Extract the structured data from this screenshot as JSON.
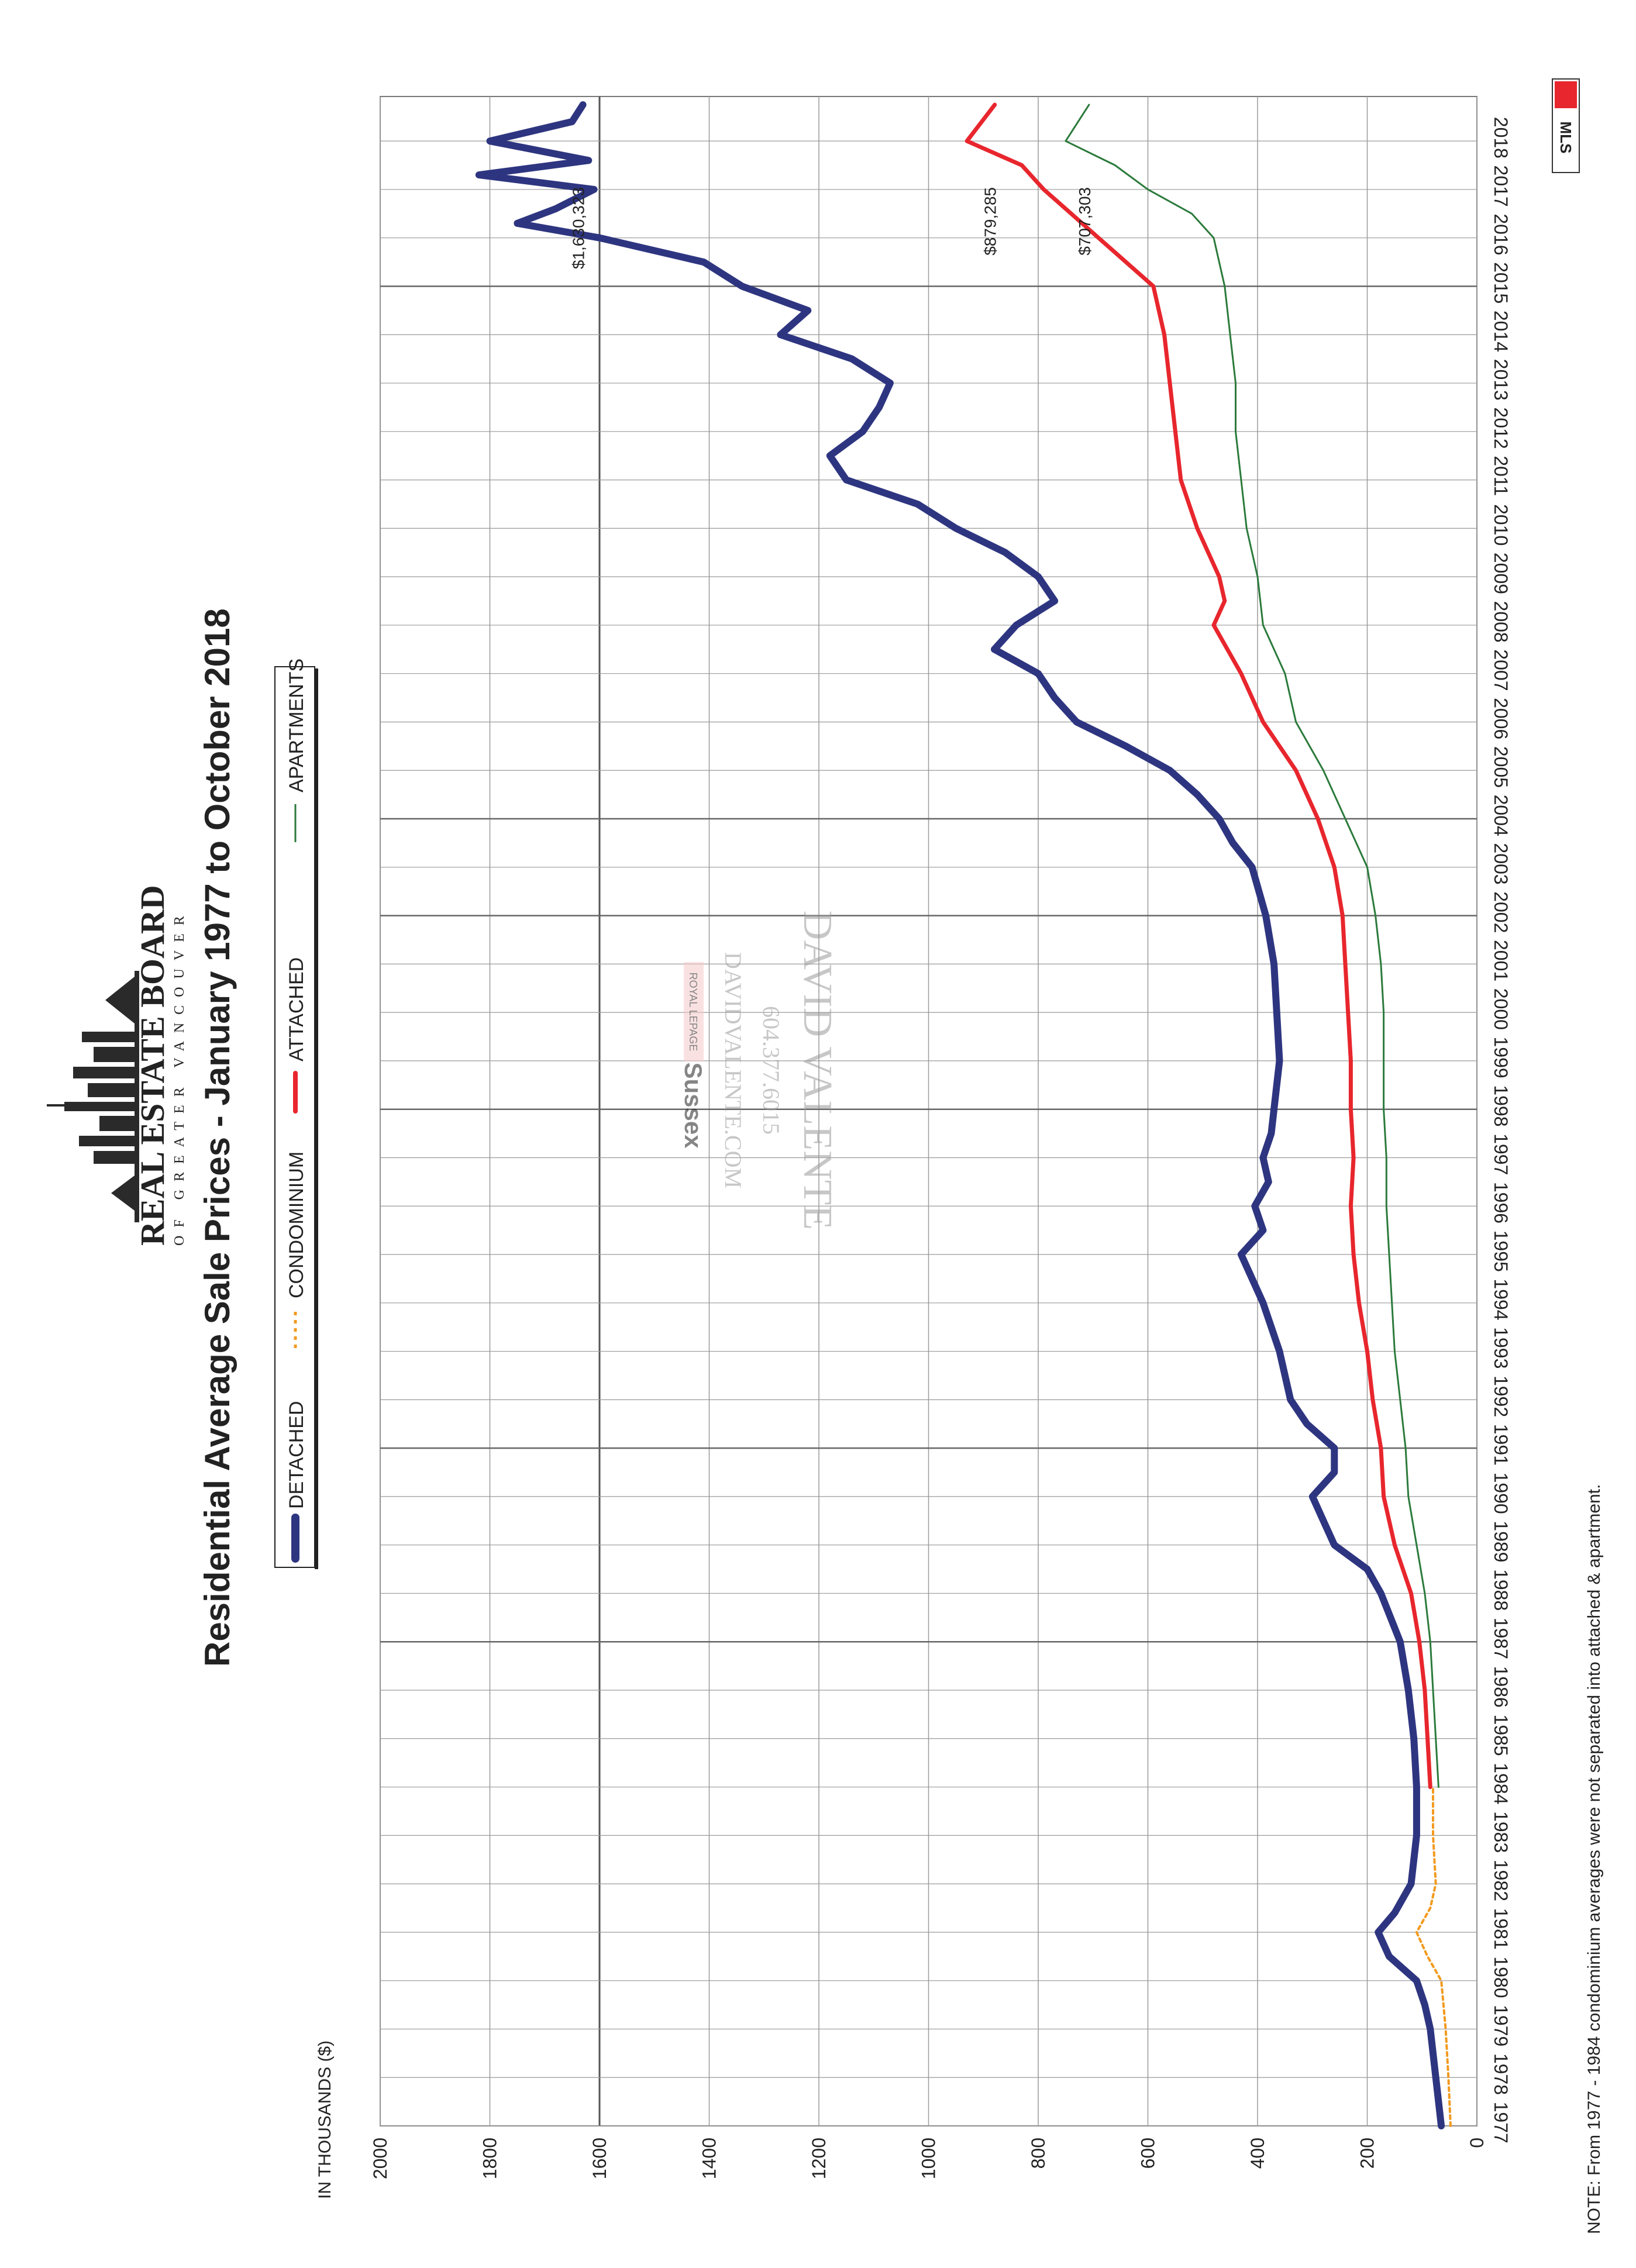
{
  "title": "Residential Average Sale Prices  -  January 1977 to October 2018",
  "logo": {
    "line1": "REAL ESTATE BOARD",
    "line2": "OF GREATER VANCOUVER"
  },
  "units_label": "IN THOUSANDS ($)",
  "note": "NOTE:  From 1977 - 1984 condominium averages were not separated into attached & apartment.",
  "watermark": {
    "name": "DAVID VALENTE",
    "phone": "604.377.6015",
    "site": "DAVIDVALENTE.COM",
    "brand_small": "ROYAL LEPAGE",
    "brand": "Sussex"
  },
  "mls_badge": "MLS",
  "colors": {
    "detached": "#2e3580",
    "condominium": "#f29a1f",
    "attached": "#e8262d",
    "apartments": "#2b7a3b",
    "grid": "#9a9a9a"
  },
  "chart_data": {
    "type": "line",
    "title": "Residential Average Sale Prices  -  January 1977 to October 2018",
    "ylabel": "IN THOUSANDS ($)",
    "ylim": [
      0,
      2000
    ],
    "xlim": [
      1977,
      2018.92
    ],
    "orientation": "rotated 90 degrees counter-clockwise",
    "grid": true,
    "legend_position": "top",
    "y_ticks": [
      "0",
      "200",
      "400",
      "600",
      "800",
      "1000",
      "1200",
      "1400",
      "1600",
      "1800",
      "2000"
    ],
    "x_ticks": [
      "1977",
      "1978",
      "1979",
      "1980",
      "1981",
      "1982",
      "1983",
      "1984",
      "1985",
      "1986",
      "1987",
      "1988",
      "1989",
      "1990",
      "1991",
      "1992",
      "1993",
      "1994",
      "1995",
      "1996",
      "1997",
      "1998",
      "1999",
      "2000",
      "2001",
      "2002",
      "2003",
      "2004",
      "2005",
      "2006",
      "2007",
      "2008",
      "2009",
      "2010",
      "2011",
      "2012",
      "2013",
      "2014",
      "2015",
      "2016",
      "2017",
      "2018"
    ],
    "end_labels": [
      {
        "series": "DETACHED",
        "text": "$1,630,323"
      },
      {
        "series": "ATTACHED",
        "text": "$879,285"
      },
      {
        "series": "APARTMENTS",
        "text": "$707,303"
      }
    ],
    "series": [
      {
        "name": "DETACHED",
        "style": "thick",
        "x": [
          1977,
          1978,
          1979,
          1979.5,
          1980,
          1980.5,
          1981,
          1981.4,
          1982,
          1983,
          1984,
          1985,
          1986,
          1987,
          1988,
          1988.5,
          1989,
          1989.5,
          1990,
          1990.5,
          1991,
          1991.5,
          1992,
          1993,
          1994,
          1995,
          1995.5,
          1996,
          1996.5,
          1997,
          1997.5,
          1998,
          1999,
          2000,
          2001,
          2002,
          2003,
          2003.5,
          2004,
          2004.5,
          2005,
          2005.5,
          2006,
          2006.5,
          2007,
          2007.5,
          2008,
          2008.5,
          2009,
          2009.5,
          2010,
          2010.5,
          2011,
          2011.5,
          2012,
          2012.5,
          2013,
          2013.5,
          2014,
          2014.5,
          2015,
          2015.5,
          2016,
          2016.3,
          2016.6,
          2017,
          2017.3,
          2017.6,
          2018,
          2018.4,
          2018.75
        ],
        "values": [
          65,
          75,
          85,
          95,
          110,
          160,
          180,
          150,
          120,
          110,
          110,
          115,
          125,
          140,
          175,
          200,
          260,
          280,
          300,
          260,
          260,
          310,
          340,
          360,
          390,
          430,
          390,
          405,
          380,
          390,
          375,
          370,
          360,
          365,
          370,
          385,
          410,
          445,
          470,
          510,
          560,
          640,
          730,
          770,
          800,
          880,
          840,
          770,
          800,
          860,
          950,
          1020,
          1150,
          1180,
          1120,
          1090,
          1070,
          1140,
          1270,
          1220,
          1340,
          1410,
          1600,
          1750,
          1680,
          1610,
          1820,
          1620,
          1800,
          1650,
          1630.323
        ]
      },
      {
        "name": "CONDOMINIUM",
        "style": "dotted",
        "x": [
          1977,
          1978,
          1979,
          1980,
          1980.5,
          1981,
          1981.5,
          1982,
          1983,
          1984
        ],
        "values": [
          48,
          52,
          57,
          65,
          90,
          110,
          85,
          75,
          80,
          80
        ]
      },
      {
        "name": "ATTACHED",
        "style": "medium",
        "x": [
          1984,
          1985,
          1986,
          1987,
          1988,
          1989,
          1990,
          1991,
          1992,
          1993,
          1994,
          1995,
          1996,
          1997,
          1998,
          1999,
          2000,
          2001,
          2002,
          2003,
          2004,
          2005,
          2006,
          2007,
          2008,
          2008.5,
          2009,
          2010,
          2011,
          2012,
          2013,
          2014,
          2015,
          2016,
          2016.5,
          2017,
          2017.5,
          2018,
          2018.75
        ],
        "values": [
          85,
          90,
          95,
          105,
          120,
          150,
          170,
          175,
          190,
          200,
          215,
          225,
          230,
          225,
          230,
          230,
          235,
          240,
          245,
          260,
          290,
          330,
          390,
          430,
          480,
          460,
          470,
          510,
          540,
          550,
          560,
          570,
          590,
          690,
          740,
          790,
          830,
          930,
          879.285
        ]
      },
      {
        "name": "APARTMENTS",
        "style": "thin",
        "x": [
          1984,
          1985,
          1986,
          1987,
          1988,
          1989,
          1990,
          1991,
          1992,
          1993,
          1994,
          1995,
          1996,
          1997,
          1998,
          1999,
          2000,
          2001,
          2002,
          2003,
          2004,
          2005,
          2006,
          2007,
          2008,
          2009,
          2010,
          2011,
          2012,
          2013,
          2014,
          2015,
          2016,
          2016.5,
          2017,
          2017.5,
          2018,
          2018.75
        ],
        "values": [
          70,
          75,
          80,
          85,
          95,
          110,
          125,
          130,
          140,
          150,
          155,
          160,
          165,
          165,
          170,
          170,
          170,
          175,
          185,
          200,
          240,
          280,
          330,
          350,
          390,
          400,
          420,
          430,
          440,
          440,
          450,
          460,
          480,
          520,
          600,
          660,
          750,
          707.303
        ]
      }
    ]
  }
}
